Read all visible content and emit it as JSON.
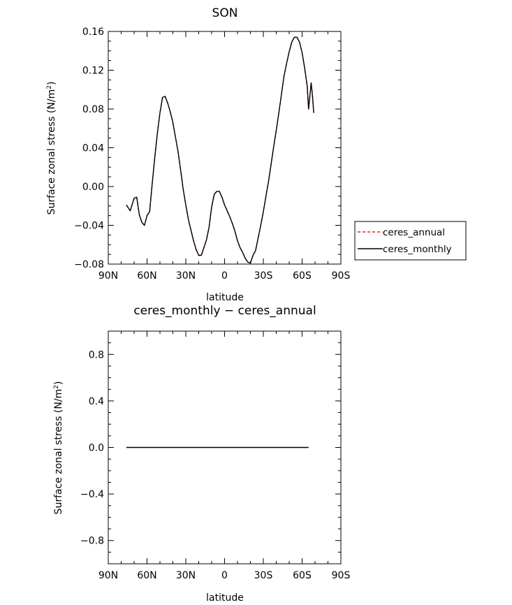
{
  "chart_data": [
    {
      "type": "line",
      "title": "SON",
      "xlabel": "latitude",
      "ylabel": "Surface zonal stress (N/m",
      "ylabel_sup": "2",
      "ylabel_end": ")",
      "xlim": [
        90,
        -90
      ],
      "ylim": [
        -0.08,
        0.16
      ],
      "x_ticks": [
        90,
        60,
        30,
        0,
        -30,
        -60,
        -90
      ],
      "x_tick_labels": [
        "90N",
        "60N",
        "30N",
        "0",
        "30S",
        "60S",
        "90S"
      ],
      "y_ticks": [
        -0.08,
        -0.04,
        0.0,
        0.04,
        0.08,
        0.12,
        0.16
      ],
      "y_tick_labels": [
        "−0.08",
        "−0.04",
        "0.00",
        "0.04",
        "0.08",
        "0.12",
        "0.16"
      ],
      "grid": false,
      "legend": {
        "placement": "outside-right",
        "entries": [
          {
            "label": "ceres_annual",
            "color": "#e8202a",
            "dash": "dashed"
          },
          {
            "label": "ceres_monthly",
            "color": "#000000",
            "dash": "solid"
          }
        ]
      },
      "x": [
        76,
        73,
        70,
        68,
        66,
        64,
        62,
        60,
        58,
        56,
        54,
        52,
        50,
        48,
        46,
        44,
        42,
        40,
        38,
        36,
        34,
        32,
        30,
        28,
        26,
        24,
        22,
        20,
        18,
        16,
        14,
        12,
        10,
        8,
        6,
        4,
        2,
        0,
        -2,
        -4,
        -6,
        -8,
        -10,
        -12,
        -14,
        -16,
        -18,
        -20,
        -22,
        -24,
        -26,
        -28,
        -30,
        -32,
        -34,
        -36,
        -38,
        -40,
        -42,
        -44,
        -46,
        -48,
        -50,
        -52,
        -54,
        -56,
        -58,
        -60,
        -62,
        -64,
        -65,
        -66,
        -67,
        -68,
        -69
      ],
      "series": [
        {
          "name": "ceres_annual",
          "color": "#e8202a",
          "dash": "dashed",
          "values": [
            -0.019,
            -0.025,
            -0.012,
            -0.011,
            -0.029,
            -0.037,
            -0.04,
            -0.03,
            -0.026,
            0.003,
            0.03,
            0.055,
            0.076,
            0.092,
            0.093,
            0.086,
            0.077,
            0.066,
            0.051,
            0.036,
            0.017,
            -0.003,
            -0.019,
            -0.034,
            -0.045,
            -0.056,
            -0.065,
            -0.071,
            -0.071,
            -0.063,
            -0.055,
            -0.042,
            -0.021,
            -0.008,
            -0.005,
            -0.005,
            -0.011,
            -0.019,
            -0.025,
            -0.031,
            -0.038,
            -0.046,
            -0.056,
            -0.063,
            -0.068,
            -0.074,
            -0.078,
            -0.079,
            -0.071,
            -0.066,
            -0.053,
            -0.04,
            -0.026,
            -0.01,
            0.005,
            0.023,
            0.041,
            0.058,
            0.076,
            0.095,
            0.114,
            0.127,
            0.139,
            0.149,
            0.154,
            0.154,
            0.149,
            0.138,
            0.122,
            0.103,
            0.08,
            0.093,
            0.107,
            0.094,
            0.076
          ]
        },
        {
          "name": "ceres_monthly",
          "color": "#000000",
          "dash": "solid",
          "values": [
            -0.019,
            -0.025,
            -0.012,
            -0.011,
            -0.029,
            -0.037,
            -0.04,
            -0.03,
            -0.026,
            0.003,
            0.03,
            0.055,
            0.076,
            0.092,
            0.093,
            0.086,
            0.077,
            0.066,
            0.051,
            0.036,
            0.017,
            -0.003,
            -0.019,
            -0.034,
            -0.045,
            -0.056,
            -0.065,
            -0.071,
            -0.071,
            -0.063,
            -0.055,
            -0.042,
            -0.021,
            -0.008,
            -0.005,
            -0.005,
            -0.011,
            -0.019,
            -0.025,
            -0.031,
            -0.038,
            -0.046,
            -0.056,
            -0.063,
            -0.068,
            -0.074,
            -0.078,
            -0.079,
            -0.071,
            -0.066,
            -0.053,
            -0.04,
            -0.026,
            -0.01,
            0.005,
            0.023,
            0.041,
            0.058,
            0.076,
            0.095,
            0.114,
            0.127,
            0.139,
            0.149,
            0.154,
            0.154,
            0.149,
            0.138,
            0.122,
            0.103,
            0.08,
            0.093,
            0.107,
            0.094,
            0.076
          ]
        }
      ]
    },
    {
      "type": "line",
      "title": "ceres_monthly − ceres_annual",
      "xlabel": "latitude",
      "ylabel": "Surface zonal stress (N/m",
      "ylabel_sup": "2",
      "ylabel_end": ")",
      "xlim": [
        90,
        -90
      ],
      "ylim": [
        -1.0,
        1.0
      ],
      "x_ticks": [
        90,
        60,
        30,
        0,
        -30,
        -60,
        -90
      ],
      "x_tick_labels": [
        "90N",
        "60N",
        "30N",
        "0",
        "30S",
        "60S",
        "90S"
      ],
      "y_ticks": [
        -0.8,
        -0.4,
        0.0,
        0.4,
        0.8
      ],
      "y_tick_labels": [
        "−0.8",
        "−0.4",
        "0.0",
        "0.4",
        "0.8"
      ],
      "grid": false,
      "x": [
        76,
        -65
      ],
      "series": [
        {
          "color": "#000000",
          "dash": "solid",
          "values": [
            0.0,
            0.0
          ]
        }
      ]
    }
  ]
}
